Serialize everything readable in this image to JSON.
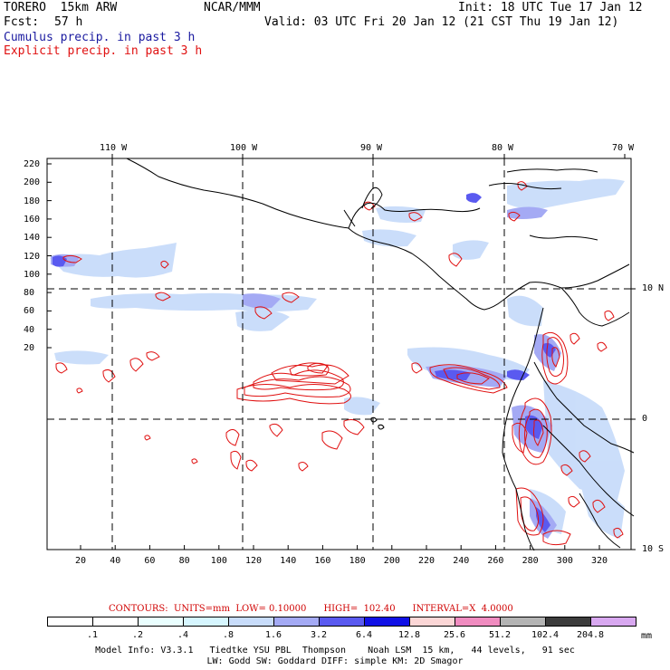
{
  "header": {
    "model": "TORERO  15km ARW",
    "org": "NCAR/MMM",
    "init": "Init: 18 UTC Tue 17 Jan 12",
    "fcst_label": "Fcst:",
    "fcst_hours": "57 h",
    "valid": "Valid: 03 UTC Fri 20 Jan 12 (21 CST Thu 19 Jan 12)",
    "cumulus_label": "Cumulus precip. in past 3 h",
    "explicit_label": "Explicit precip. in past 3 h"
  },
  "colors": {
    "cumulus": "#1a1aa0",
    "explicit": "#e01010",
    "map_border": "#000000"
  },
  "axes": {
    "top_lon_labels": [
      "110 W",
      "100 W",
      "90 W",
      "80 W",
      "70 W"
    ],
    "right_lat_labels": [
      "10 N",
      "0",
      "10 S"
    ],
    "left_ticks": [
      "220",
      "200",
      "180",
      "160",
      "140",
      "120",
      "100",
      "80",
      "60",
      "40",
      "20"
    ],
    "bottom_ticks": [
      "20",
      "40",
      "60",
      "80",
      "100",
      "120",
      "140",
      "160",
      "180",
      "200",
      "220",
      "240",
      "260",
      "280",
      "300",
      "320"
    ]
  },
  "contour_info": {
    "text": "CONTOURS:  UNITS=mm  LOW= 0.10000      HIGH=  102.40      INTERVAL=X  4.0000"
  },
  "legend": {
    "labels": [
      ".1",
      ".2",
      ".4",
      ".8",
      "1.6",
      "3.2",
      "6.4",
      "12.8",
      "25.6",
      "51.2",
      "102.4",
      "204.8"
    ],
    "unit": "mm",
    "colors": [
      "#ffffff",
      "#ffffff",
      "#eaffff",
      "#d6f6ff",
      "#c8dcfa",
      "#a4aaf4",
      "#5a5af0",
      "#1010e6",
      "#fbd6d6",
      "#f08cc0",
      "#b4b4b4",
      "#3c3c3c",
      "#d8a8f0"
    ]
  },
  "footer": {
    "line1": "Model Info: V3.3.1   Tiedtke YSU PBL  Thompson    Noah LSM  15 km,   44 levels,   91 sec",
    "line2": "LW: Godd SW: Goddard DIFF: simple KM: 2D Smagor"
  }
}
